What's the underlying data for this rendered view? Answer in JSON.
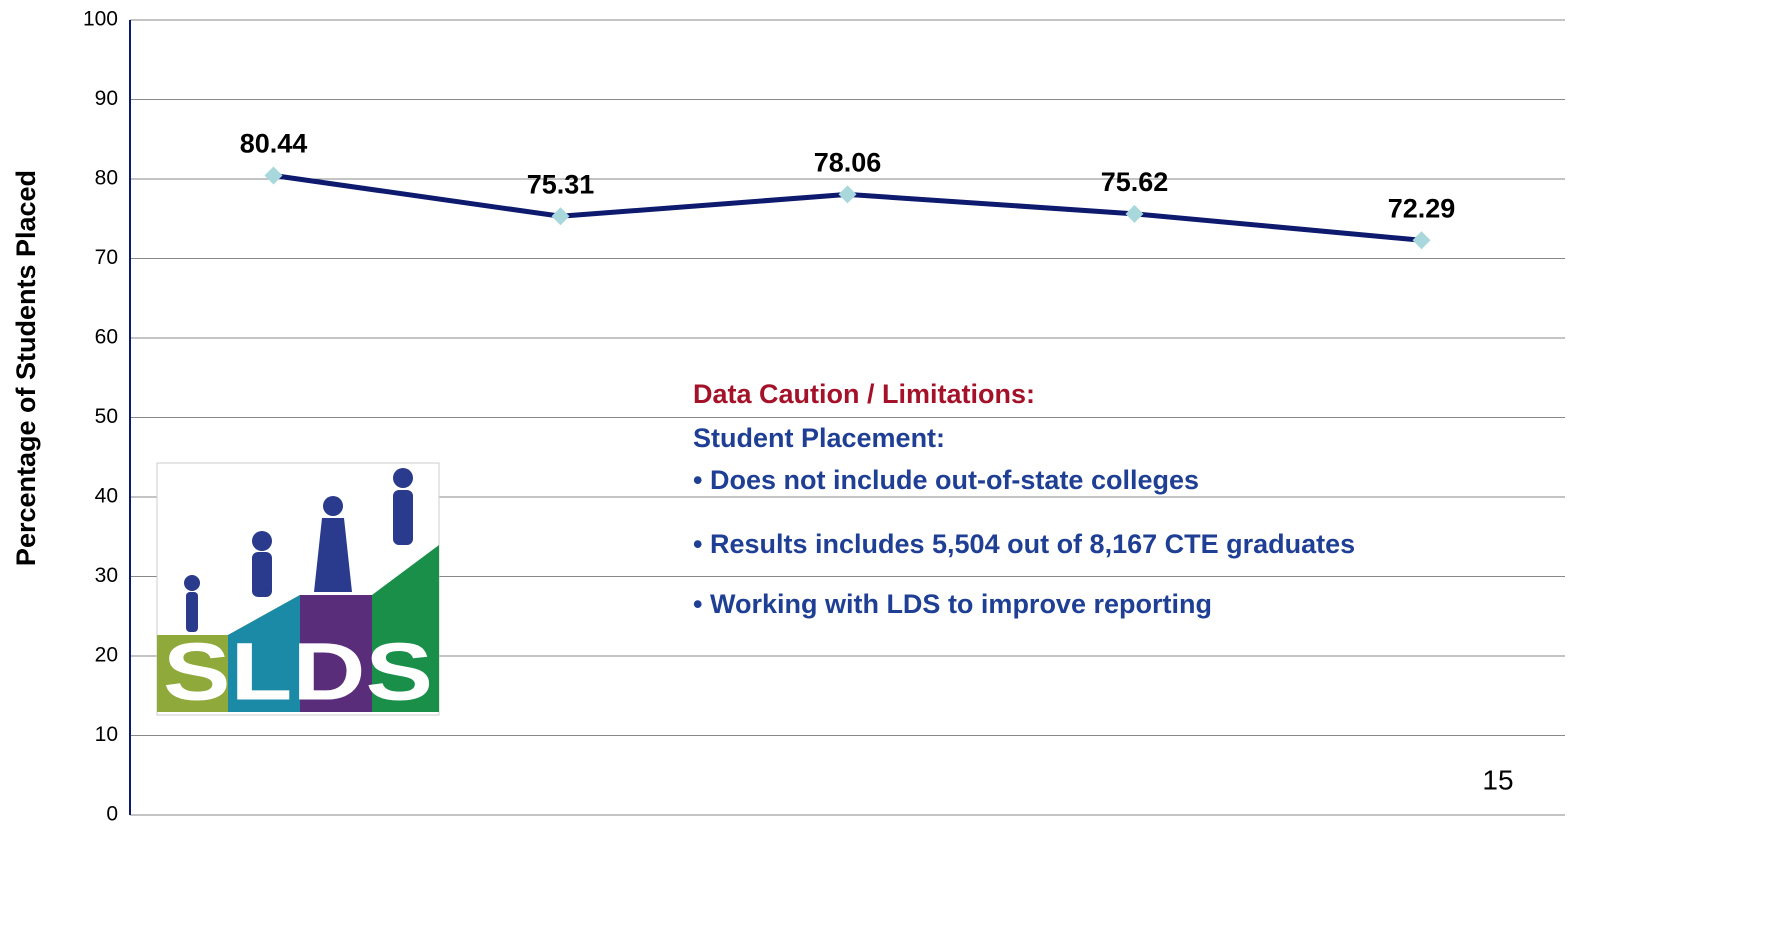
{
  "chart_data": {
    "type": "line",
    "y_axis_label": "Percentage of Students Placed",
    "categories": [
      null,
      null,
      null,
      null,
      null
    ],
    "series": [
      {
        "name": null,
        "color": "#0d1a6e",
        "marker_color": "#a9d8dc",
        "values": [
          80.44,
          75.31,
          78.06,
          75.62,
          72.29
        ]
      }
    ],
    "ylim": [
      0,
      100
    ],
    "yticks": [
      0,
      10,
      20,
      30,
      40,
      50,
      60,
      70,
      80,
      90,
      100
    ],
    "grid": true,
    "annotation_title": "Data Caution / Limitations:",
    "annotation_subtitle": "Student Placement:",
    "annotation_bullets": [
      "• Does not include out-of-state colleges",
      "• Results includes 5,504 out of 8,167 CTE graduates",
      "• Working with LDS to improve reporting"
    ],
    "logo_text": "SLDS",
    "page_number": "15"
  }
}
